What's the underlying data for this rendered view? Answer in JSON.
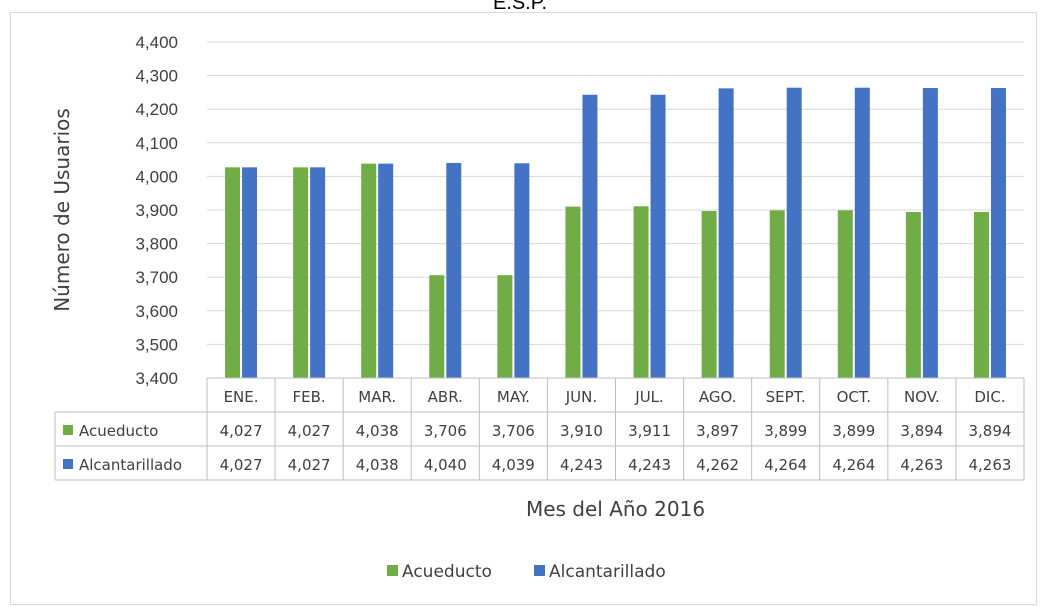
{
  "chart_data": {
    "type": "bar",
    "title": "E.S.P.",
    "xlabel": "Mes del Año 2016",
    "ylabel": "Número de Usuarios",
    "ylim": [
      3400,
      4400
    ],
    "yticks": [
      "3,400",
      "3,500",
      "3,600",
      "3,700",
      "3,800",
      "3,900",
      "4,000",
      "4,100",
      "4,200",
      "4,300",
      "4,400"
    ],
    "grid": true,
    "legend_position": "bottom",
    "categories": [
      "ENE.",
      "FEB.",
      "MAR.",
      "ABR.",
      "MAY.",
      "JUN.",
      "JUL.",
      "AGO.",
      "SEPT.",
      "OCT.",
      "NOV.",
      "DIC."
    ],
    "series": [
      {
        "name": "Acueducto",
        "color": "#70ad47",
        "values": [
          4027,
          4027,
          4038,
          3706,
          3706,
          3910,
          3911,
          3897,
          3899,
          3899,
          3894,
          3894
        ],
        "labels": [
          "4,027",
          "4,027",
          "4,038",
          "3,706",
          "3,706",
          "3,910",
          "3,911",
          "3,897",
          "3,899",
          "3,899",
          "3,894",
          "3,894"
        ]
      },
      {
        "name": "Alcantarillado",
        "color": "#4472c4",
        "values": [
          4027,
          4027,
          4038,
          4040,
          4039,
          4243,
          4243,
          4262,
          4264,
          4264,
          4263,
          4263
        ],
        "labels": [
          "4,027",
          "4,027",
          "4,038",
          "4,040",
          "4,039",
          "4,243",
          "4,243",
          "4,262",
          "4,264",
          "4,264",
          "4,263",
          "4,263"
        ]
      }
    ]
  }
}
